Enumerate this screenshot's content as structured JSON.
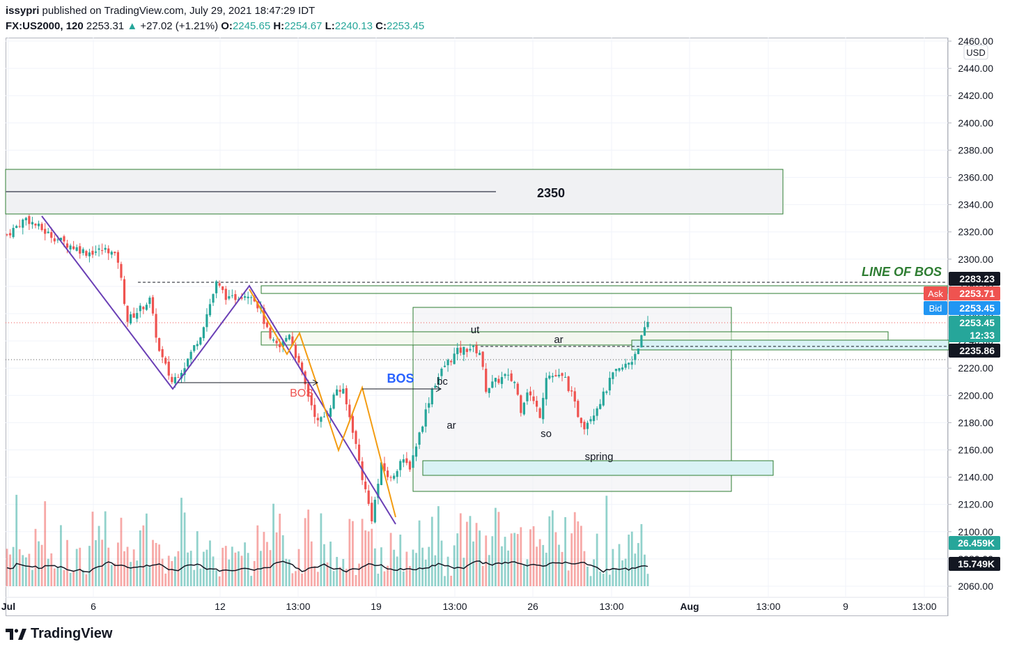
{
  "header": {
    "publisher": "issypri",
    "published_text": "published on TradingView.com, July 29, 2021 18:47:29 IDT",
    "symbol": "FX:US2000, 120",
    "last": "2253.31",
    "arrow": "▲",
    "change": "+27.02 (+1.21%)",
    "o_label": "O:",
    "o_val": "2245.65",
    "h_label": "H:",
    "h_val": "2254.67",
    "l_label": "L:",
    "l_val": "2240.13",
    "c_label": "C:",
    "c_val": "2253.45"
  },
  "footer": {
    "brand": "TradingView",
    "logo_icon": "tradingview-logo-icon"
  },
  "colors": {
    "up": "#26a69a",
    "down": "#ef5350",
    "purple": "#6a3fb5",
    "orange": "#f39c12",
    "zone_green": "#2e7d32",
    "cyan_fill": "#d9f2f5",
    "ask": "#ef5350",
    "bid": "#2196f3"
  },
  "chart_data": {
    "type": "candlestick",
    "currency": "USD",
    "ylim": [
      2050,
      2465
    ],
    "y_ticks": [
      "2460.00",
      "2440.00",
      "2420.00",
      "2400.00",
      "2380.00",
      "2360.00",
      "2340.00",
      "2320.00",
      "2300.00",
      "2280.00",
      "2260.00",
      "2240.00",
      "2220.00",
      "2200.00",
      "2180.00",
      "2160.00",
      "2140.00",
      "2120.00",
      "2100.00",
      "2080.00",
      "2060.00"
    ],
    "x_ticks": [
      "Jul",
      "6",
      "12",
      "13:00",
      "19",
      "13:00",
      "26",
      "13:00",
      "Aug",
      "13:00",
      "9",
      "13:00"
    ],
    "price_tags": [
      {
        "label": "",
        "value": "2283.23",
        "style": "black"
      },
      {
        "label": "Ask",
        "value": "2253.71",
        "style": "ask"
      },
      {
        "label": "Bid",
        "value": "2253.45",
        "style": "bid"
      },
      {
        "label": "",
        "value": "2253.45",
        "style": "last"
      },
      {
        "label": "",
        "value": "12:33",
        "style": "last"
      },
      {
        "label": "",
        "value": "2235.86",
        "style": "black"
      },
      {
        "label": "",
        "value": "26.459K",
        "style": "up"
      },
      {
        "label": "",
        "value": "15.749K",
        "style": "black"
      }
    ],
    "zone_label_2350": "2350",
    "line_of_bos": "LINE OF BOS",
    "annotations": {
      "bos_blue": "BOS",
      "bos_red": "BOS",
      "bc": "bc",
      "ar1": "ar",
      "ut": "ut",
      "ar2": "ar",
      "so": "so",
      "spring": "spring"
    },
    "price_waypoints": [
      [
        0,
        2318
      ],
      [
        6,
        2330
      ],
      [
        12,
        2320
      ],
      [
        18,
        2312
      ],
      [
        25,
        2305
      ],
      [
        32,
        2307
      ],
      [
        35,
        2299
      ],
      [
        38,
        2255
      ],
      [
        45,
        2270
      ],
      [
        48,
        2232
      ],
      [
        52,
        2210
      ],
      [
        56,
        2222
      ],
      [
        61,
        2245
      ],
      [
        66,
        2282
      ],
      [
        70,
        2270
      ],
      [
        74,
        2274
      ],
      [
        77,
        2275
      ],
      [
        80,
        2262
      ],
      [
        83,
        2240
      ],
      [
        86,
        2235
      ],
      [
        89,
        2246
      ],
      [
        92,
        2222
      ],
      [
        95,
        2200
      ],
      [
        98,
        2180
      ],
      [
        101,
        2187
      ],
      [
        104,
        2205
      ],
      [
        106,
        2202
      ],
      [
        109,
        2175
      ],
      [
        112,
        2140
      ],
      [
        115,
        2110
      ],
      [
        118,
        2148
      ],
      [
        121,
        2138
      ],
      [
        124,
        2152
      ],
      [
        127,
        2148
      ],
      [
        131,
        2180
      ],
      [
        134,
        2205
      ],
      [
        138,
        2222
      ],
      [
        142,
        2232
      ],
      [
        146,
        2235
      ],
      [
        149,
        2232
      ],
      [
        151,
        2205
      ],
      [
        154,
        2210
      ],
      [
        157,
        2214
      ],
      [
        160,
        2210
      ],
      [
        162,
        2190
      ],
      [
        164,
        2204
      ],
      [
        166,
        2195
      ],
      [
        168,
        2186
      ],
      [
        170,
        2215
      ],
      [
        173,
        2214
      ],
      [
        176,
        2212
      ],
      [
        178,
        2200
      ],
      [
        180,
        2186
      ],
      [
        182,
        2178
      ],
      [
        185,
        2188
      ],
      [
        188,
        2200
      ],
      [
        191,
        2215
      ],
      [
        194,
        2220
      ],
      [
        197,
        2226
      ],
      [
        200,
        2242
      ],
      [
        202,
        2253
      ]
    ],
    "volume_range": [
      3,
      30
    ]
  }
}
